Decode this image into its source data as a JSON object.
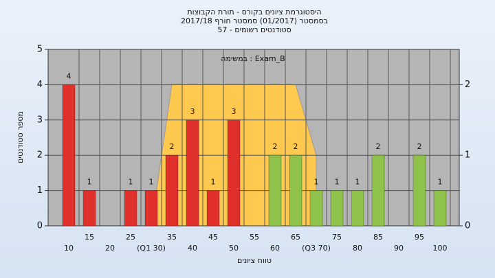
{
  "chart_data": {
    "type": "bar",
    "title": "היסטוגרמת ציונים בקורס - תורת הקבוצות",
    "subtitle": "בסמסטר (01/2017) סמסטר חורף 2017/18",
    "subtitle2": "סטודנטים רשומים - 57",
    "annotation": "במשימה : Exam_B",
    "x_label": "טווח ציונים",
    "y_label": "מספר סטודנטים",
    "categories": [
      "10",
      "15",
      "20",
      "25",
      "(Q1 30)",
      "35",
      "40",
      "45",
      "50",
      "55",
      "60",
      "65",
      "(Q3 70)",
      "75",
      "80",
      "85",
      "90",
      "95",
      "100"
    ],
    "values": [
      4,
      1,
      0,
      1,
      1,
      2,
      3,
      1,
      3,
      0,
      2,
      2,
      1,
      1,
      1,
      2,
      0,
      2,
      1
    ],
    "colors": [
      "#e0302c",
      "#e0302c",
      "#e0302c",
      "#e0302c",
      "#e0302c",
      "#e0302c",
      "#e0302c",
      "#e0302c",
      "#e0302c",
      "#e0302c",
      "#8fc24a",
      "#8fc24a",
      "#8fc24a",
      "#8fc24a",
      "#8fc24a",
      "#8fc24a",
      "#8fc24a",
      "#8fc24a",
      "#8fc24a"
    ],
    "ylim": [
      0,
      5
    ],
    "yticks": [
      0,
      1,
      2,
      3,
      4,
      5
    ],
    "y2lim": [
      0,
      2.5
    ],
    "y2ticks": [
      0,
      1,
      2
    ],
    "overlay": {
      "axis": "y2",
      "color": "#ffc94f",
      "x": [
        30,
        35,
        65,
        70,
        70
      ],
      "values": [
        0,
        2,
        2,
        1,
        0
      ]
    },
    "grid": true
  }
}
